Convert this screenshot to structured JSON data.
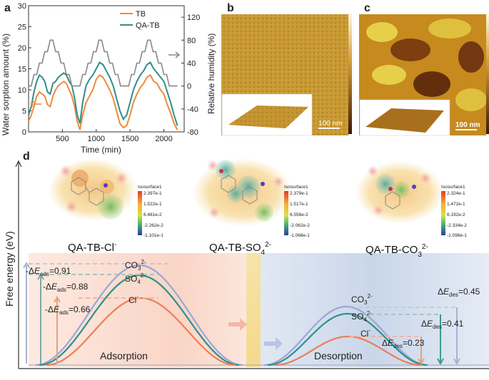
{
  "panels": {
    "a": "a",
    "b": "b",
    "c": "c",
    "d": "d"
  },
  "chart_data": [
    {
      "type": "line",
      "panel": "a",
      "xlabel": "Time (min)",
      "ylabel": "Water sorption amount (%)",
      "y2label": "Relative humidity (%)",
      "xlim": [
        0,
        2300
      ],
      "ylim": [
        0,
        30
      ],
      "y2lim": [
        -80,
        140
      ],
      "xticks": [
        "500",
        "1000",
        "1500",
        "2000"
      ],
      "yticks": [
        "0",
        "5",
        "10",
        "15",
        "20",
        "25",
        "30"
      ],
      "y2ticks": [
        "-80",
        "-40",
        "0",
        "40",
        "80",
        "120"
      ],
      "legend_position": "top-right",
      "legend": [
        "TB",
        "QA-TB"
      ],
      "colors": {
        "TB": "#ee8a3c",
        "QA-TB": "#2f8f8b",
        "RH": "#888888"
      },
      "series": [
        {
          "name": "TB",
          "x": [
            0,
            40,
            80,
            120,
            160,
            200,
            240,
            280,
            320,
            360,
            400,
            440,
            480,
            520,
            560,
            600,
            640,
            680,
            720,
            760,
            800,
            850,
            900,
            950,
            1000,
            1050,
            1100,
            1150,
            1200,
            1250,
            1300,
            1350,
            1400,
            1450,
            1500,
            1550,
            1600,
            1650,
            1700,
            1750,
            1800,
            1850,
            1900,
            1950,
            2000,
            2050,
            2100,
            2150,
            2200
          ],
          "values": [
            2.5,
            4,
            6,
            8.5,
            9.5,
            9,
            8.5,
            6.5,
            6,
            8.5,
            10,
            11,
            11.5,
            12,
            11.5,
            10,
            8.5,
            6,
            2.5,
            0.5,
            4,
            7,
            8.5,
            10,
            12.5,
            13.5,
            13,
            11.5,
            10,
            8,
            5,
            2,
            1,
            1.5,
            4,
            7,
            9,
            10.5,
            11.5,
            13,
            13.5,
            12,
            11.5,
            10,
            9,
            6.5,
            4.5,
            2,
            0.5
          ]
        },
        {
          "name": "QA-TB",
          "x": [
            0,
            40,
            80,
            120,
            160,
            200,
            240,
            280,
            320,
            360,
            400,
            440,
            480,
            520,
            560,
            600,
            640,
            680,
            720,
            760,
            800,
            850,
            900,
            950,
            1000,
            1050,
            1100,
            1150,
            1200,
            1250,
            1300,
            1350,
            1400,
            1450,
            1500,
            1550,
            1600,
            1650,
            1700,
            1750,
            1800,
            1850,
            1900,
            1950,
            2000,
            2050,
            2100,
            2150,
            2200
          ],
          "values": [
            4,
            6,
            9.5,
            12,
            13.5,
            13,
            12,
            9.5,
            9,
            11.5,
            12,
            13,
            13.5,
            14,
            13.5,
            12,
            11,
            8,
            4,
            2,
            7,
            11,
            12.5,
            13.5,
            15,
            16.5,
            16,
            14.5,
            13,
            11,
            8,
            5,
            3,
            4,
            7,
            10,
            12,
            13.5,
            14.5,
            16,
            16.5,
            15,
            14,
            13,
            12,
            9.5,
            7,
            4,
            1.5
          ]
        },
        {
          "name": "RH",
          "x": [
            0,
            40,
            80,
            120,
            160,
            200,
            240,
            280,
            320,
            360,
            400,
            440,
            480,
            520,
            560,
            600,
            640,
            680,
            720,
            760,
            800,
            840,
            880,
            920,
            960,
            1000,
            1040,
            1080,
            1120,
            1160,
            1200,
            1240,
            1280,
            1320,
            1360,
            1400,
            1440,
            1480,
            1520,
            1560,
            1600,
            1640,
            1680,
            1720,
            1760,
            1800,
            1840,
            1880,
            1920,
            1960,
            2000,
            2040,
            2080,
            2120,
            2160,
            2200
          ],
          "values": [
            0,
            0,
            20,
            20,
            40,
            40,
            60,
            60,
            80,
            80,
            60,
            60,
            40,
            40,
            20,
            20,
            0,
            0,
            0,
            0,
            20,
            20,
            40,
            40,
            60,
            60,
            80,
            80,
            60,
            60,
            40,
            40,
            20,
            20,
            0,
            0,
            0,
            0,
            20,
            20,
            40,
            40,
            60,
            60,
            80,
            80,
            60,
            60,
            40,
            40,
            20,
            20,
            0,
            0,
            0,
            0
          ]
        }
      ]
    }
  ],
  "afm": {
    "b_scale": "100 nm",
    "c_scale": "100 nm"
  },
  "molecules": [
    {
      "label": "QA-TB-Cl",
      "sup": "-",
      "isosurface": "Isosurface1",
      "ticks": [
        "2.397e-1",
        "1.522e-1",
        "6.481e-2",
        "-2.262e-2",
        "-1.101e-1"
      ]
    },
    {
      "label": "QA-TB-SO",
      "sub": "4",
      "sup": "2-",
      "isosurface": "Isosurface1",
      "ticks": [
        "2.379e-1",
        "1.517e-1",
        "6.556e-2",
        "-2.062e-2",
        "-1.068e-1"
      ]
    },
    {
      "label": "QA-TB-CO",
      "sub": "3",
      "sup": "2-",
      "isosurface": "Isosurface1",
      "ticks": [
        "2.324e-1",
        "1.472e-1",
        "6.192e-2",
        "-2.334e-2",
        "-1.096e-1"
      ]
    }
  ],
  "energy": {
    "ylabel": "Free energy (eV)",
    "adsorption_label": "Adsorption",
    "desorption_label": "Desorption",
    "ads": [
      {
        "prefix": "-Δ",
        "var": "E",
        "sub": "ads",
        "value": "=0.91"
      },
      {
        "prefix": "-Δ",
        "var": "E",
        "sub": "ads",
        "value": "=0.88"
      },
      {
        "prefix": "-Δ",
        "var": "E",
        "sub": "ads",
        "value": "=0.66"
      }
    ],
    "des": [
      {
        "prefix": "Δ",
        "var": "E",
        "sub": "des",
        "value": "=0.45"
      },
      {
        "prefix": "Δ",
        "var": "E",
        "sub": "des",
        "value": "=0.41"
      },
      {
        "prefix": "Δ",
        "var": "E",
        "sub": "des",
        "value": "=0.23"
      }
    ],
    "ions": [
      {
        "base": "CO",
        "sub": "3",
        "sup": "2-"
      },
      {
        "base": "SO",
        "sub": "4",
        "sup": "2-"
      },
      {
        "base": "Cl",
        "sub": "",
        "sup": "-"
      }
    ],
    "colors": {
      "CO3": "#9aa6d8",
      "SO4": "#2f8f8b",
      "Cl": "#ee7d55"
    }
  }
}
